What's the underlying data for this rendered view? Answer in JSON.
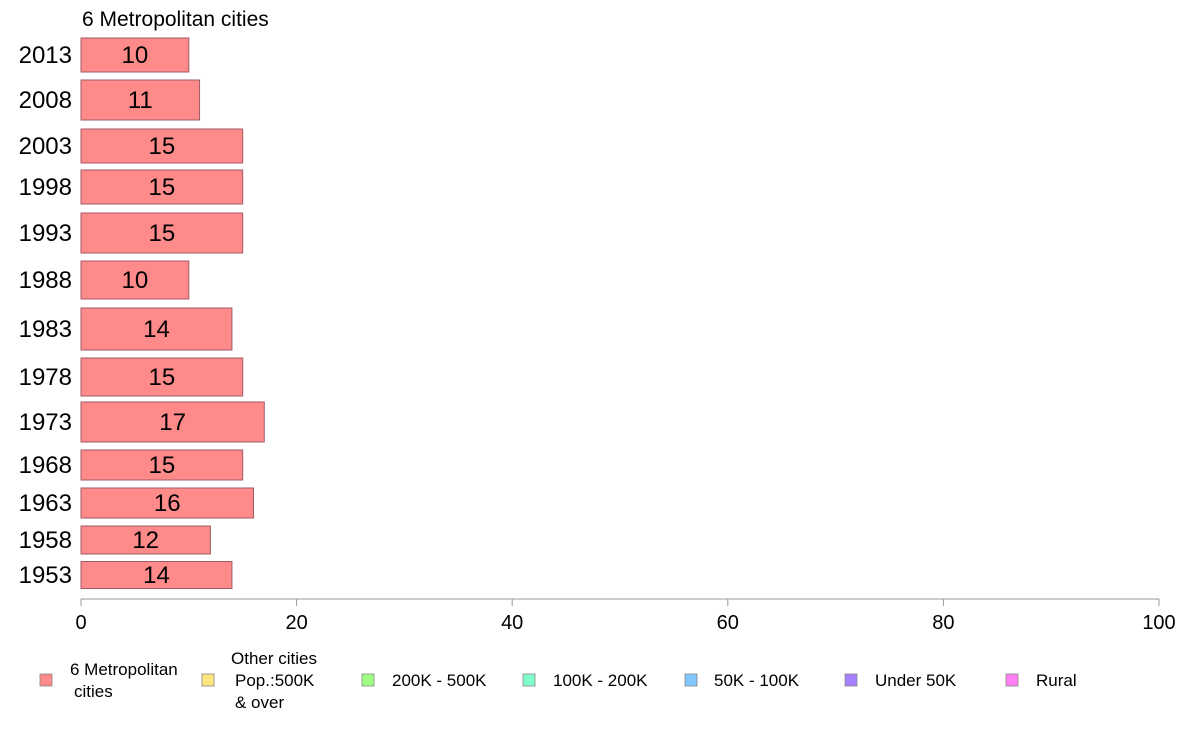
{
  "chart_data": {
    "type": "bar",
    "orientation": "horizontal",
    "title": "6 Metropolitan cities",
    "categories": [
      "2013",
      "2008",
      "2003",
      "1998",
      "1993",
      "1988",
      "1983",
      "1978",
      "1973",
      "1968",
      "1963",
      "1958",
      "1953"
    ],
    "series": [
      {
        "name": "6 Metropolitan cities",
        "values": [
          10,
          11,
          15,
          15,
          15,
          10,
          14,
          15,
          17,
          15,
          16,
          12,
          14
        ],
        "data_labels": [
          "10",
          "11",
          "15",
          "15",
          "15",
          "10",
          "14",
          "15",
          "17",
          "15",
          "16",
          "12",
          "14"
        ]
      }
    ],
    "xlim": [
      0,
      100
    ],
    "x_ticks": [
      0,
      20,
      40,
      60,
      80,
      100
    ],
    "xlabel": "",
    "ylabel": "",
    "grid": false,
    "legend_position": "bottom",
    "legend": [
      {
        "lines": [
          "6 Metropolitan",
          "cities"
        ],
        "color": "#ff8a8a"
      },
      {
        "lines": [
          "Other cities",
          "Pop.:500K",
          "& over"
        ],
        "color": "#ffe680"
      },
      {
        "lines": [
          "200K - 500K"
        ],
        "color": "#a0ff80"
      },
      {
        "lines": [
          "100K - 200K"
        ],
        "color": "#80ffcc"
      },
      {
        "lines": [
          "50K - 100K"
        ],
        "color": "#80c8ff"
      },
      {
        "lines": [
          "Under 50K"
        ],
        "color": "#a680ff"
      },
      {
        "lines": [
          "Rural"
        ],
        "color": "#ff80f0"
      }
    ],
    "colors": {
      "bar_fill": "#ff8a8a",
      "bar_stroke": "#a05a66",
      "axis": "#999999"
    }
  }
}
